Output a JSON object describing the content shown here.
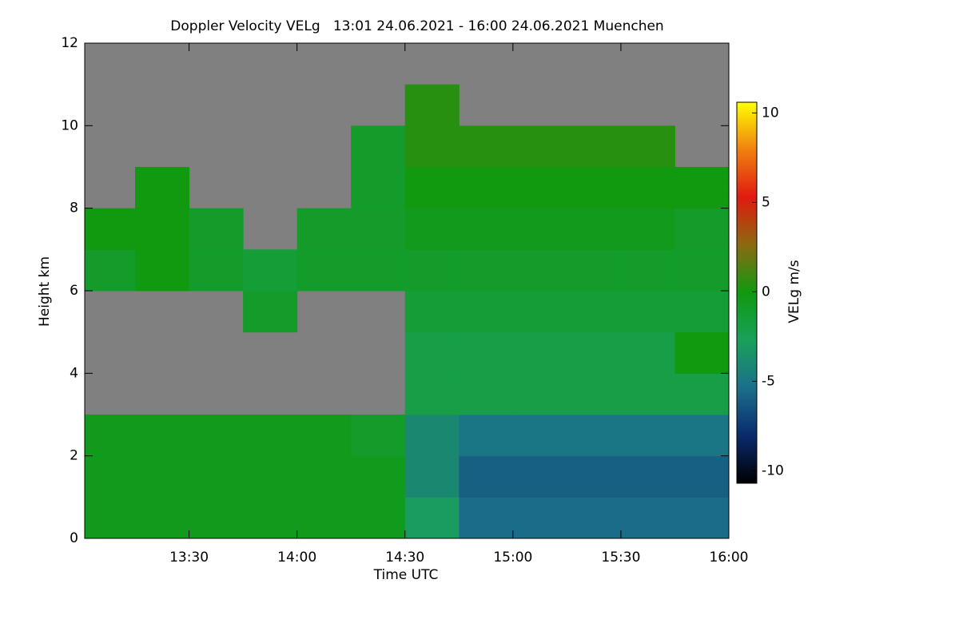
{
  "chart_data": {
    "type": "heatmap",
    "title": "Doppler Velocity VELg   13:01 24.06.2021 - 16:00 24.06.2021 Muenchen",
    "x_label": "Time UTC",
    "y_label": "Height km",
    "colorbar_label": "VELg m/s",
    "xlim": [
      13.0167,
      16.0
    ],
    "xticks": [
      {
        "value": 13.5,
        "label": "13:30"
      },
      {
        "value": 14.0,
        "label": "14:00"
      },
      {
        "value": 14.5,
        "label": "14:30"
      },
      {
        "value": 15.0,
        "label": "15:00"
      },
      {
        "value": 15.5,
        "label": "15:30"
      },
      {
        "value": 16.0,
        "label": "16:00"
      }
    ],
    "ylim": [
      0,
      12
    ],
    "yticks": [
      0,
      2,
      4,
      6,
      8,
      10,
      12
    ],
    "x_edges": [
      13.0167,
      13.25,
      13.5,
      13.75,
      14.0,
      14.25,
      14.5,
      14.75,
      15.0,
      15.25,
      15.5,
      15.75,
      16.0
    ],
    "y_edges": [
      0,
      1,
      2,
      3,
      4,
      5,
      6,
      7,
      8,
      9,
      10,
      11,
      12
    ],
    "values": [
      [
        -0.5,
        -0.5,
        -0.5,
        -0.5,
        -0.5,
        -0.5,
        -3,
        -5.5,
        -5.5,
        -5.5,
        -5.5,
        -5.5
      ],
      [
        -0.5,
        -0.5,
        -0.5,
        -0.5,
        -0.5,
        -0.5,
        -4,
        -6,
        -6,
        -6,
        -6,
        -6
      ],
      [
        -0.5,
        -0.5,
        -0.5,
        -0.5,
        -0.5,
        -1,
        -4,
        -5,
        -5,
        -5,
        -5,
        -5
      ],
      [
        null,
        null,
        null,
        null,
        null,
        null,
        -2,
        -2,
        -2,
        -2,
        -2,
        -2
      ],
      [
        null,
        null,
        null,
        null,
        null,
        null,
        -2,
        -2,
        -2,
        -2,
        -2,
        0
      ],
      [
        null,
        null,
        null,
        -1,
        null,
        null,
        -1.5,
        -1.5,
        -1.5,
        -1.5,
        -1.5,
        -1.5
      ],
      [
        -1,
        0,
        -1,
        -1.5,
        -1,
        -1,
        -1,
        -1,
        -1,
        -1,
        -1,
        -1
      ],
      [
        0,
        0,
        -1,
        null,
        -1,
        -1,
        -0.5,
        -0.5,
        -0.5,
        -0.5,
        -0.5,
        -1
      ],
      [
        null,
        0,
        null,
        null,
        null,
        -1,
        0,
        0,
        0,
        0,
        0,
        0
      ],
      [
        null,
        null,
        null,
        null,
        null,
        -1,
        0.5,
        0.5,
        0.5,
        0.5,
        0.5,
        null
      ],
      [
        null,
        null,
        null,
        null,
        null,
        null,
        0.5,
        null,
        null,
        null,
        null,
        null
      ],
      [
        null,
        null,
        null,
        null,
        null,
        null,
        null,
        null,
        null,
        null,
        null,
        null
      ]
    ],
    "zlim": [
      -10.7,
      10.6
    ],
    "zticks": [
      -10,
      -5,
      0,
      5,
      10
    ],
    "colormap": [
      "#000000",
      "#0a2a6e",
      "#1b6f8a",
      "#1aa05a",
      "#0f9a10",
      "#8a6a10",
      "#e01a10",
      "#f08010",
      "#ffff00"
    ],
    "missing_color": "#808080"
  }
}
